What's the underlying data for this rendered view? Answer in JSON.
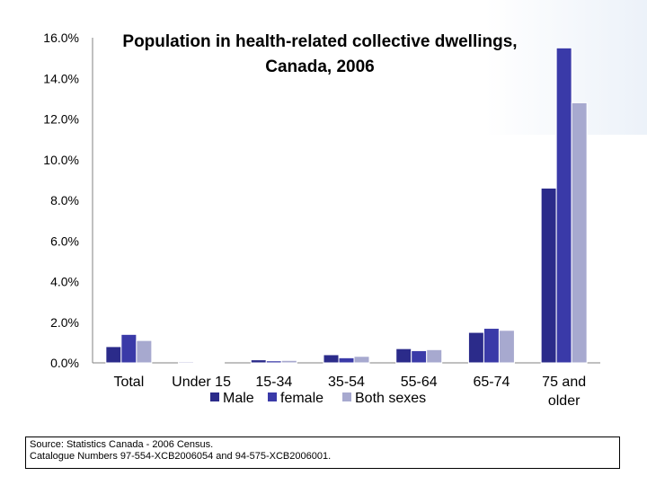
{
  "chart_data": {
    "type": "bar",
    "title": "Population in health-related collective dwellings, Canada, 2006",
    "title_lines": [
      "Population in health-related collective dwellings,",
      "Canada, 2006"
    ],
    "categories": [
      "Total",
      "Under 15",
      "15-34",
      "35-54",
      "55-64",
      "65-74",
      "75 and older"
    ],
    "category_lines": [
      [
        "Total"
      ],
      [
        "Under 15"
      ],
      [
        "15-34"
      ],
      [
        "35-54"
      ],
      [
        "55-64"
      ],
      [
        "65-74"
      ],
      [
        "75 and",
        "older"
      ]
    ],
    "series": [
      {
        "name": "Male",
        "color": "#2b2b8a",
        "values": [
          0.8,
          0.05,
          0.15,
          0.4,
          0.7,
          1.5,
          8.6
        ]
      },
      {
        "name": "female",
        "color": "#3a3aa8",
        "values": [
          1.4,
          0.03,
          0.1,
          0.25,
          0.6,
          1.7,
          15.5
        ]
      },
      {
        "name": "Both sexes",
        "color": "#a7a9cf",
        "values": [
          1.1,
          0.04,
          0.12,
          0.32,
          0.65,
          1.6,
          12.8
        ]
      }
    ],
    "ylim": [
      0,
      16
    ],
    "ytick_values": [
      0,
      2,
      4,
      6,
      8,
      10,
      12,
      14,
      16
    ],
    "yticks": [
      "0.0%",
      "2.0%",
      "4.0%",
      "6.0%",
      "8.0%",
      "10.0%",
      "12.0%",
      "14.0%",
      "16.0%"
    ],
    "xlabel": "",
    "ylabel": "",
    "grid": false,
    "legend_position": "bottom"
  },
  "source": {
    "line1": "Source: Statistics Canada - 2006 Census.",
    "line2": "Catalogue Numbers 97-554-XCB2006054 and 94-575-XCB2006001."
  },
  "colors": {
    "axis": "#808080",
    "bar_edge": "#ffffff"
  }
}
